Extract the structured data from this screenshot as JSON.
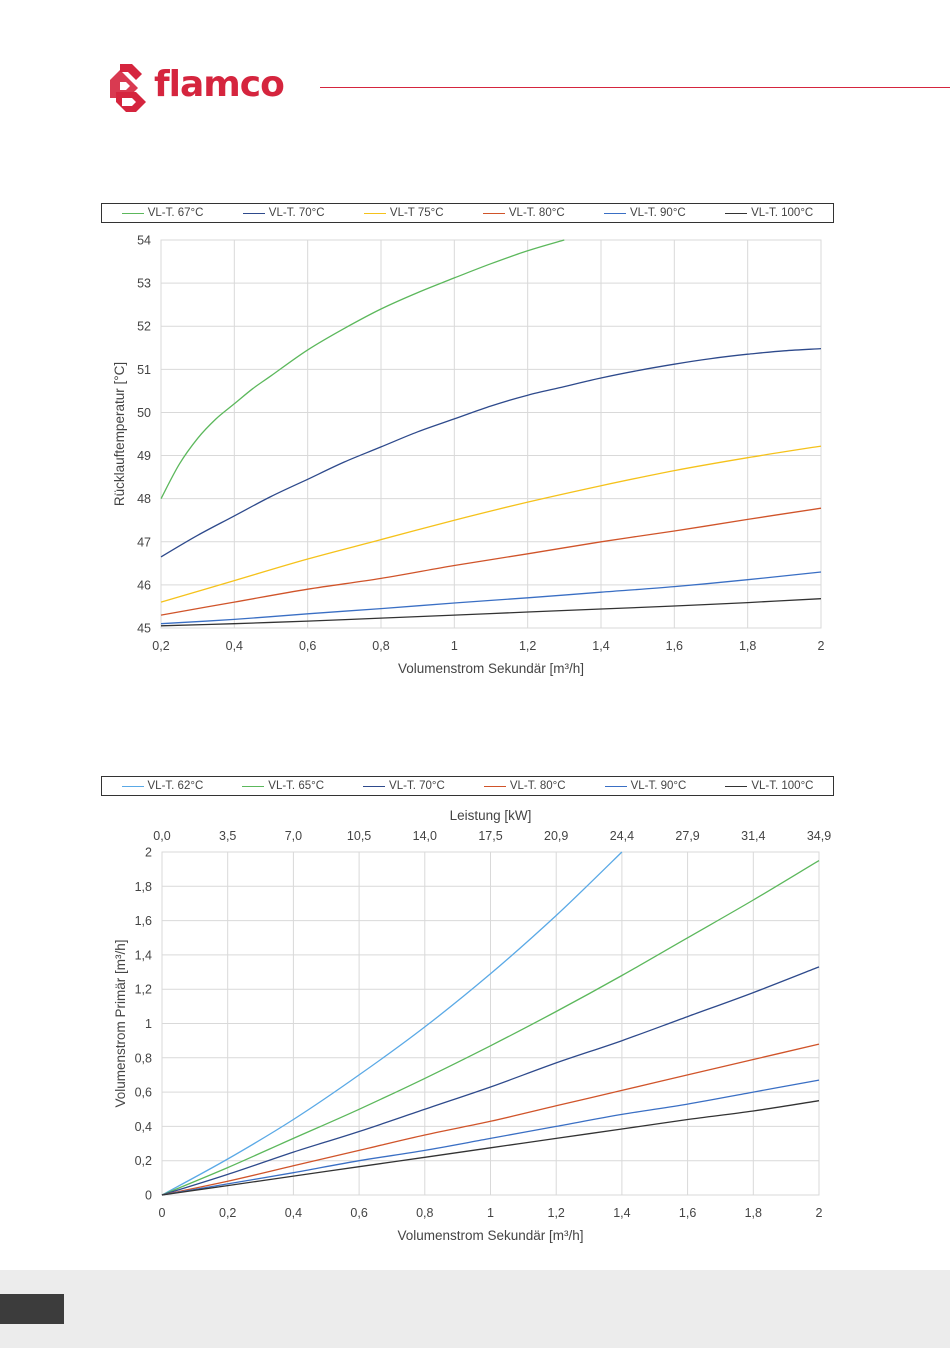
{
  "brand": {
    "name": "flamco",
    "color": "#d5253e"
  },
  "chart_data": [
    {
      "type": "line",
      "title": "",
      "xlabel": "Volumenstrom Sekundär [m³/h]",
      "ylabel": "Rücklauftemperatur [°C]",
      "xlim": [
        0.2,
        2
      ],
      "ylim": [
        45,
        54
      ],
      "xticks": [
        "0,2",
        "0,4",
        "0,6",
        "0,8",
        "1",
        "1,2",
        "1,4",
        "1,6",
        "1,8",
        "2"
      ],
      "yticks": [
        "45",
        "46",
        "47",
        "48",
        "49",
        "50",
        "51",
        "52",
        "53",
        "54"
      ],
      "grid": true,
      "legend_position": "top",
      "series": [
        {
          "name": "VL-T. 67°C",
          "color": "#5cb85c",
          "x": [
            0.2,
            0.25,
            0.3,
            0.35,
            0.4,
            0.45,
            0.5,
            0.6,
            0.7,
            0.8,
            0.9,
            1.0,
            1.1,
            1.2,
            1.3
          ],
          "y": [
            48.0,
            48.8,
            49.4,
            49.85,
            50.2,
            50.55,
            50.85,
            51.45,
            51.95,
            52.4,
            52.78,
            53.12,
            53.45,
            53.75,
            54.0
          ]
        },
        {
          "name": "VL-T. 70°C",
          "color": "#2e4a8c",
          "x": [
            0.2,
            0.3,
            0.4,
            0.5,
            0.6,
            0.7,
            0.8,
            0.9,
            1.0,
            1.1,
            1.2,
            1.3,
            1.4,
            1.5,
            1.6,
            1.7,
            1.8,
            1.9,
            2.0
          ],
          "y": [
            46.65,
            47.15,
            47.6,
            48.05,
            48.45,
            48.85,
            49.2,
            49.55,
            49.85,
            50.15,
            50.4,
            50.6,
            50.8,
            50.97,
            51.12,
            51.25,
            51.35,
            51.43,
            51.48
          ]
        },
        {
          "name": "VL-T 75°C",
          "color": "#f5c21b",
          "x": [
            0.2,
            0.4,
            0.6,
            0.8,
            1.0,
            1.2,
            1.4,
            1.6,
            1.8,
            2.0
          ],
          "y": [
            45.6,
            46.1,
            46.6,
            47.05,
            47.5,
            47.92,
            48.3,
            48.65,
            48.95,
            49.22
          ]
        },
        {
          "name": "VL-T. 80°C",
          "color": "#d0542a",
          "x": [
            0.2,
            0.4,
            0.6,
            0.8,
            1.0,
            1.2,
            1.4,
            1.6,
            1.8,
            2.0
          ],
          "y": [
            45.3,
            45.6,
            45.9,
            46.15,
            46.45,
            46.72,
            47.0,
            47.25,
            47.52,
            47.78
          ]
        },
        {
          "name": "VL-T. 90°C",
          "color": "#3a6fc4",
          "x": [
            0.2,
            0.4,
            0.6,
            0.8,
            1.0,
            1.2,
            1.4,
            1.6,
            1.8,
            2.0
          ],
          "y": [
            45.1,
            45.2,
            45.33,
            45.45,
            45.58,
            45.7,
            45.83,
            45.96,
            46.12,
            46.3
          ]
        },
        {
          "name": "VL-T. 100°C",
          "color": "#333333",
          "x": [
            0.2,
            0.4,
            0.6,
            0.8,
            1.0,
            1.2,
            1.4,
            1.6,
            1.8,
            2.0
          ],
          "y": [
            45.05,
            45.1,
            45.16,
            45.23,
            45.3,
            45.37,
            45.44,
            45.51,
            45.59,
            45.68
          ]
        }
      ]
    },
    {
      "type": "line",
      "title": "",
      "xlabel": "Volumenstrom Sekundär [m³/h]",
      "ylabel": "Volumenstrom Primär [m³/h]",
      "x2label": "Leistung [kW]",
      "xlim": [
        0,
        2
      ],
      "ylim": [
        0,
        2
      ],
      "xticks": [
        "0",
        "0,2",
        "0,4",
        "0,6",
        "0,8",
        "1",
        "1,2",
        "1,4",
        "1,6",
        "1,8",
        "2"
      ],
      "x2ticks": [
        "0,0",
        "3,5",
        "7,0",
        "10,5",
        "14,0",
        "17,5",
        "20,9",
        "24,4",
        "27,9",
        "31,4",
        "34,9"
      ],
      "yticks": [
        "0",
        "0,2",
        "0,4",
        "0,6",
        "0,8",
        "1",
        "1,2",
        "1,4",
        "1,6",
        "1,8",
        "2"
      ],
      "grid": true,
      "legend_position": "top",
      "series": [
        {
          "name": "VL-T. 62°C",
          "color": "#5aa9e6",
          "x": [
            0,
            0.2,
            0.4,
            0.6,
            0.8,
            1.0,
            1.2,
            1.4
          ],
          "y": [
            0,
            0.21,
            0.44,
            0.7,
            0.98,
            1.29,
            1.63,
            2.0
          ]
        },
        {
          "name": "VL-T. 65°C",
          "color": "#5cb85c",
          "x": [
            0,
            0.2,
            0.4,
            0.6,
            0.8,
            1.0,
            1.2,
            1.4,
            1.6,
            1.8,
            2.0
          ],
          "y": [
            0,
            0.16,
            0.33,
            0.5,
            0.68,
            0.87,
            1.07,
            1.28,
            1.5,
            1.72,
            1.95
          ]
        },
        {
          "name": "VL-T. 70°C",
          "color": "#2e4a8c",
          "x": [
            0,
            0.2,
            0.4,
            0.6,
            0.8,
            1.0,
            1.2,
            1.4,
            1.6,
            1.8,
            2.0
          ],
          "y": [
            0,
            0.12,
            0.25,
            0.37,
            0.5,
            0.63,
            0.77,
            0.9,
            1.04,
            1.18,
            1.33
          ]
        },
        {
          "name": "VL-T. 80°C",
          "color": "#d0542a",
          "x": [
            0,
            0.2,
            0.4,
            0.6,
            0.8,
            1.0,
            1.2,
            1.4,
            1.6,
            1.8,
            2.0
          ],
          "y": [
            0,
            0.08,
            0.17,
            0.26,
            0.35,
            0.43,
            0.52,
            0.61,
            0.7,
            0.79,
            0.88
          ]
        },
        {
          "name": "VL-T. 90°C",
          "color": "#3a6fc4",
          "x": [
            0,
            0.2,
            0.4,
            0.6,
            0.8,
            1.0,
            1.2,
            1.4,
            1.6,
            1.8,
            2.0
          ],
          "y": [
            0,
            0.065,
            0.13,
            0.2,
            0.26,
            0.33,
            0.4,
            0.47,
            0.53,
            0.6,
            0.67
          ]
        },
        {
          "name": "VL-T. 100°C",
          "color": "#333333",
          "x": [
            0,
            0.2,
            0.4,
            0.6,
            0.8,
            1.0,
            1.2,
            1.4,
            1.6,
            1.8,
            2.0
          ],
          "y": [
            0,
            0.055,
            0.11,
            0.165,
            0.22,
            0.275,
            0.33,
            0.385,
            0.44,
            0.49,
            0.55
          ]
        }
      ]
    }
  ]
}
